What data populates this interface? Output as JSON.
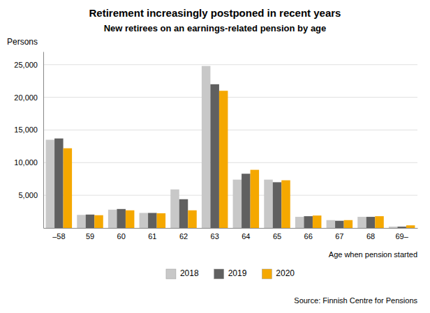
{
  "chart_data": {
    "type": "bar",
    "title": "Retirement increasingly postponed in recent years",
    "subtitle": "New retirees on an earnings-related pension by age",
    "ylabel": "Persons",
    "xlabel": "Age when pension started",
    "annotations": [
      "Source: Finnish Centre for Pensions"
    ],
    "categories": [
      "–58",
      "59",
      "60",
      "61",
      "62",
      "63",
      "64",
      "65",
      "66",
      "67",
      "68",
      "69–"
    ],
    "series": [
      {
        "name": "2018",
        "color": "#c8c8c8",
        "values": [
          13500,
          2000,
          2800,
          2300,
          5900,
          24800,
          7400,
          7400,
          1700,
          1200,
          1700,
          200
        ]
      },
      {
        "name": "2019",
        "color": "#606060",
        "values": [
          13700,
          2050,
          2900,
          2300,
          4400,
          22000,
          8300,
          7000,
          1800,
          1100,
          1700,
          200
        ]
      },
      {
        "name": "2020",
        "color": "#f5a800",
        "values": [
          12200,
          1950,
          2700,
          2250,
          2700,
          21000,
          8900,
          7300,
          1900,
          1200,
          1800,
          400
        ]
      }
    ],
    "ylim": [
      0,
      27000
    ],
    "yticks": [
      {
        "value": 5000,
        "label": "5,000"
      },
      {
        "value": 10000,
        "label": "10,000"
      },
      {
        "value": 15000,
        "label": "15,000"
      },
      {
        "value": 20000,
        "label": "20,000"
      },
      {
        "value": 25000,
        "label": "25,000"
      }
    ],
    "grid": true,
    "legend": "bottom"
  }
}
